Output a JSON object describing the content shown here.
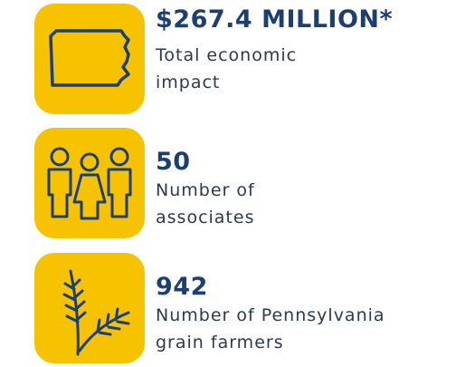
{
  "items": [
    {
      "value": "$267.4 MILLION*",
      "label_lines": [
        "Total economic",
        "impact"
      ]
    },
    {
      "value": "50",
      "label_lines": [
        "Number of",
        "associates"
      ]
    },
    {
      "value": "942",
      "label_lines": [
        "Number of Pennsylvania",
        "grain farmers"
      ]
    }
  ]
}
